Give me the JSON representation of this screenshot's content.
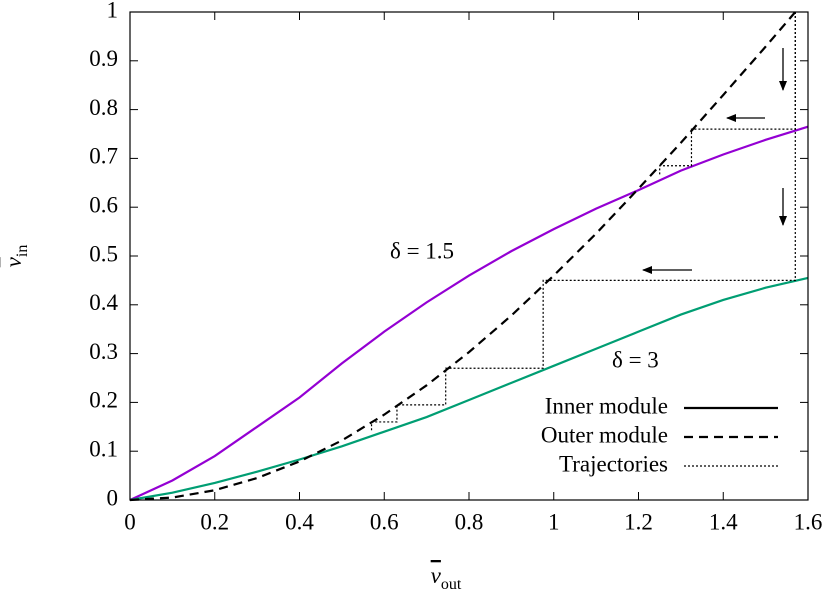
{
  "chart_data": {
    "type": "line",
    "xlabel": {
      "symbol": "v",
      "subscript": "out"
    },
    "ylabel": {
      "symbol": "v",
      "subscript": "in"
    },
    "xlim": [
      0,
      1.6
    ],
    "ylim": [
      0,
      1
    ],
    "xticks": [
      0,
      0.2,
      0.4,
      0.6,
      0.8,
      1,
      1.2,
      1.4,
      1.6
    ],
    "yticks": [
      0,
      0.1,
      0.2,
      0.3,
      0.4,
      0.5,
      0.6,
      0.7,
      0.8,
      0.9,
      1
    ],
    "legend": [
      {
        "label": "Inner module",
        "style": "solid"
      },
      {
        "label": "Outer module",
        "style": "dashed"
      },
      {
        "label": "Trajectories",
        "style": "dotted"
      }
    ],
    "series": [
      {
        "label": "δ = 1.5",
        "style": "solid",
        "color": "#9400d3",
        "x": [
          0,
          0.1,
          0.2,
          0.3,
          0.4,
          0.5,
          0.6,
          0.7,
          0.8,
          0.9,
          1.0,
          1.1,
          1.2,
          1.3,
          1.4,
          1.5,
          1.6
        ],
        "values": [
          0,
          0.04,
          0.09,
          0.15,
          0.21,
          0.28,
          0.345,
          0.405,
          0.46,
          0.51,
          0.555,
          0.597,
          0.635,
          0.675,
          0.708,
          0.738,
          0.765
        ]
      },
      {
        "label": "δ = 3",
        "style": "solid",
        "color": "#009e73",
        "x": [
          0,
          0.1,
          0.2,
          0.3,
          0.4,
          0.5,
          0.6,
          0.7,
          0.8,
          0.9,
          1.0,
          1.1,
          1.2,
          1.3,
          1.4,
          1.5,
          1.6
        ],
        "values": [
          0,
          0.015,
          0.035,
          0.058,
          0.083,
          0.11,
          0.14,
          0.17,
          0.205,
          0.24,
          0.275,
          0.31,
          0.345,
          0.38,
          0.41,
          0.435,
          0.455
        ]
      },
      {
        "style": "dashed",
        "color": "#000000",
        "x": [
          0,
          0.1,
          0.2,
          0.3,
          0.4,
          0.5,
          0.6,
          0.7,
          0.8,
          0.9,
          1.0,
          1.1,
          1.2,
          1.3,
          1.4,
          1.5,
          1.57
        ],
        "values": [
          0,
          0.005,
          0.02,
          0.045,
          0.079,
          0.122,
          0.175,
          0.235,
          0.303,
          0.378,
          0.46,
          0.546,
          0.638,
          0.732,
          0.83,
          0.929,
          1
        ]
      },
      {
        "style": "dotted",
        "color": "#000000",
        "x": [
          1.57,
          1.57,
          1.325,
          1.325,
          1.25,
          1.25
        ],
        "values": [
          1,
          0.76,
          0.76,
          0.685,
          0.685,
          0.665
        ]
      },
      {
        "style": "dotted",
        "color": "#000000",
        "x": [
          1.57,
          1.57,
          0.975,
          0.975,
          0.745,
          0.745,
          0.63,
          0.63,
          0.57,
          0.57
        ],
        "values": [
          1,
          0.45,
          0.45,
          0.27,
          0.27,
          0.195,
          0.195,
          0.16,
          0.16,
          0.14
        ]
      }
    ]
  }
}
